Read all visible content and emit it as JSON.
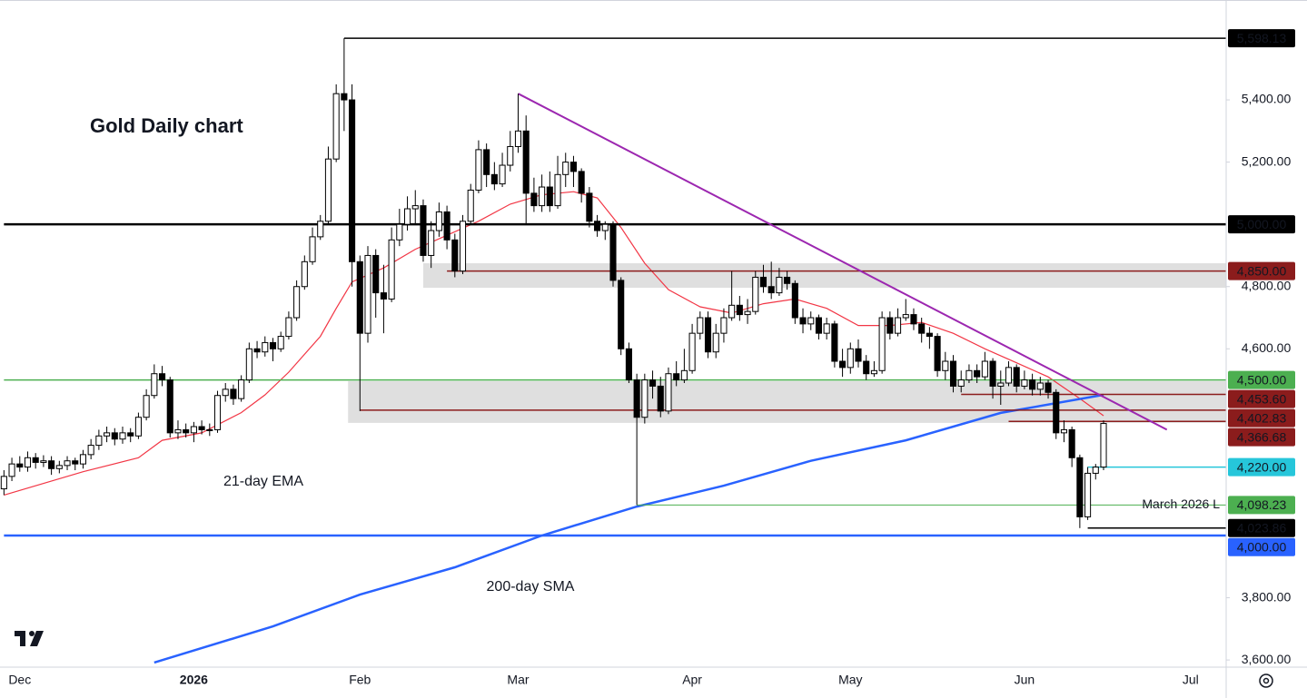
{
  "chart_data": {
    "type": "candlestick",
    "title": "Gold Daily chart",
    "categories": [
      null,
      null,
      "Dec",
      null,
      null,
      null,
      null,
      null,
      null,
      null,
      null,
      null,
      null,
      null,
      null,
      null,
      null,
      null,
      null,
      null,
      null,
      null,
      null,
      null,
      "2026",
      null,
      null,
      null,
      null,
      null,
      null,
      null,
      null,
      null,
      null,
      null,
      null,
      null,
      null,
      null,
      null,
      null,
      null,
      null,
      null,
      "Feb",
      null,
      null,
      null,
      null,
      null,
      null,
      null,
      null,
      null,
      null,
      null,
      null,
      null,
      null,
      null,
      null,
      null,
      null,
      null,
      "Mar",
      null,
      null,
      null,
      null,
      null,
      null,
      null,
      null,
      null,
      null,
      null,
      null,
      null,
      null,
      null,
      null,
      null,
      null,
      null,
      null,
      null,
      "Apr",
      null,
      null,
      null,
      null,
      null,
      null,
      null,
      null,
      null,
      null,
      null,
      null,
      null,
      null,
      null,
      null,
      null,
      null,
      null,
      "May",
      null,
      null,
      null,
      null,
      null,
      null,
      null,
      null,
      null,
      null,
      null,
      null,
      null,
      null,
      null,
      null,
      null,
      null,
      null,
      null,
      null,
      "Jun",
      null,
      null,
      null,
      null,
      null,
      null,
      null,
      null,
      null,
      null,
      null,
      null,
      null,
      null,
      null,
      null,
      null,
      null,
      null,
      null,
      "Jul",
      null,
      null,
      null,
      null
    ],
    "candles": {
      "up_color": "#ffffff",
      "down_color": "#000000",
      "outline": "#000000",
      "open": [
        4150,
        4190,
        4230,
        4220,
        4250,
        4235,
        4240,
        4215,
        4225,
        4240,
        4230,
        4260,
        4290,
        4320,
        4330,
        4310,
        4330,
        4320,
        4380,
        4450,
        4520,
        4500,
        4330,
        4340,
        4330,
        4350,
        4340,
        4340,
        4450,
        4470,
        4440,
        4500,
        4600,
        4590,
        4620,
        4600,
        4640,
        4700,
        4800,
        4880,
        4960,
        5010,
        5210,
        5420,
        5400,
        4880,
        4650,
        4900,
        4780,
        4760,
        4950,
        5000,
        5050,
        5060,
        4900,
        4980,
        5040,
        4950,
        4850,
        5010,
        5110,
        5240,
        5160,
        5130,
        5190,
        5250,
        5300,
        5100,
        5060,
        5120,
        5060,
        5160,
        5200,
        5170,
        5100,
        5010,
        4980,
        5000,
        4820,
        4600,
        4500,
        4380,
        4500,
        4480,
        4400,
        4520,
        4500,
        4530,
        4650,
        4700,
        4590,
        4650,
        4700,
        4740,
        4710,
        4720,
        4830,
        4800,
        4780,
        4830,
        4810,
        4700,
        4680,
        4700,
        4650,
        4680,
        4560,
        4540,
        4600,
        4560,
        4520,
        4530,
        4700,
        4650,
        4700,
        4710,
        4680,
        4650,
        4640,
        4530,
        4560,
        4480,
        4500,
        4530,
        4510,
        4560,
        4480,
        4490,
        4540,
        4480,
        4500,
        4470,
        4490,
        4460,
        4330,
        4340,
        4250,
        4060,
        4200,
        4220,
        null,
        null,
        null,
        null,
        null,
        null,
        null,
        null,
        null,
        null,
        null,
        null,
        null,
        null,
        null
      ],
      "high": [
        4210,
        4250,
        4255,
        4270,
        4265,
        4258,
        4255,
        4240,
        4255,
        4250,
        4275,
        4310,
        4340,
        4350,
        4345,
        4350,
        4345,
        4395,
        4470,
        4550,
        4545,
        4510,
        4370,
        4360,
        4365,
        4370,
        4360,
        4465,
        4490,
        4485,
        4515,
        4620,
        4625,
        4640,
        4635,
        4655,
        4720,
        4820,
        4900,
        4990,
        5030,
        5250,
        5450,
        5598.13,
        5450,
        4900,
        4930,
        4920,
        4870,
        4990,
        5050,
        5090,
        5110,
        5080,
        5010,
        5070,
        5060,
        4970,
        5030,
        5130,
        5270,
        5260,
        5200,
        5230,
        5300,
        5420,
        5350,
        5150,
        5160,
        5170,
        5220,
        5230,
        5220,
        5180,
        5120,
        5030,
        5010,
        5010,
        4830,
        4620,
        4520,
        4520,
        4530,
        4510,
        4540,
        4560,
        4600,
        4680,
        4720,
        4720,
        4680,
        4730,
        4850,
        4770,
        4760,
        4850,
        4870,
        4880,
        4860,
        4850,
        4820,
        4730,
        4720,
        4710,
        4700,
        4690,
        4600,
        4620,
        4630,
        4580,
        4560,
        4720,
        4720,
        4730,
        4760,
        4730,
        4700,
        4670,
        4650,
        4590,
        4580,
        4530,
        4550,
        4550,
        4590,
        4570,
        4530,
        4560,
        4550,
        4530,
        4520,
        4510,
        4500,
        4470,
        4370,
        4350,
        4260,
        4220,
        4230,
        4370,
        null,
        null,
        null,
        null,
        null,
        null,
        null,
        null,
        null,
        null,
        null,
        null,
        null,
        null,
        null
      ],
      "low": [
        4130,
        4175,
        4205,
        4205,
        4215,
        4220,
        4195,
        4200,
        4210,
        4210,
        4215,
        4245,
        4275,
        4300,
        4290,
        4295,
        4300,
        4310,
        4370,
        4440,
        4480,
        4315,
        4310,
        4315,
        4300,
        4325,
        4320,
        4330,
        4430,
        4420,
        4430,
        4490,
        4570,
        4575,
        4560,
        4590,
        4630,
        4690,
        4790,
        4870,
        4950,
        5000,
        5200,
        5300,
        4800,
        4400,
        4620,
        4700,
        4650,
        4750,
        4930,
        4980,
        5000,
        4880,
        4860,
        4960,
        4920,
        4830,
        4840,
        5000,
        5100,
        5120,
        5110,
        5120,
        5170,
        5230,
        5000,
        5040,
        5040,
        5040,
        5050,
        5120,
        5120,
        5070,
        4990,
        4960,
        4950,
        4800,
        4580,
        4490,
        4098.23,
        4360,
        4440,
        4380,
        4390,
        4480,
        4490,
        4520,
        4630,
        4570,
        4570,
        4620,
        4690,
        4690,
        4680,
        4710,
        4780,
        4760,
        4770,
        4790,
        4680,
        4650,
        4660,
        4630,
        4630,
        4540,
        4510,
        4520,
        4540,
        4500,
        4510,
        4520,
        4630,
        4640,
        4690,
        4660,
        4620,
        4600,
        4510,
        4500,
        4460,
        4460,
        4490,
        4490,
        4500,
        4440,
        4420,
        4480,
        4460,
        4470,
        4450,
        4450,
        4440,
        4310,
        4300,
        4220,
        4023.86,
        4050,
        4180,
        4210,
        null,
        null,
        null,
        null,
        null,
        null,
        null,
        null,
        null,
        null,
        null,
        null,
        null,
        null,
        null
      ],
      "close": [
        4190,
        4230,
        4220,
        4250,
        4235,
        4240,
        4215,
        4225,
        4240,
        4230,
        4260,
        4290,
        4320,
        4330,
        4310,
        4330,
        4320,
        4380,
        4450,
        4520,
        4500,
        4330,
        4340,
        4330,
        4350,
        4340,
        4340,
        4450,
        4470,
        4440,
        4500,
        4600,
        4590,
        4620,
        4600,
        4640,
        4700,
        4800,
        4880,
        4960,
        5010,
        5210,
        5420,
        5400,
        4880,
        4650,
        4900,
        4780,
        4760,
        4950,
        5000,
        5050,
        5060,
        4900,
        4980,
        5040,
        4950,
        4850,
        5010,
        5110,
        5240,
        5160,
        5130,
        5190,
        5250,
        5300,
        5100,
        5060,
        5120,
        5060,
        5160,
        5200,
        5170,
        5100,
        5010,
        4980,
        5000,
        4820,
        4600,
        4500,
        4380,
        4500,
        4480,
        4400,
        4520,
        4500,
        4530,
        4650,
        4700,
        4590,
        4650,
        4700,
        4740,
        4710,
        4720,
        4830,
        4800,
        4780,
        4830,
        4810,
        4700,
        4680,
        4700,
        4650,
        4680,
        4560,
        4540,
        4600,
        4560,
        4520,
        4530,
        4700,
        4650,
        4700,
        4710,
        4680,
        4650,
        4640,
        4530,
        4560,
        4480,
        4500,
        4530,
        4510,
        4560,
        4480,
        4490,
        4540,
        4480,
        4500,
        4470,
        4490,
        4460,
        4330,
        4340,
        4250,
        4060,
        4200,
        4220,
        4360,
        null,
        null,
        null,
        null,
        null,
        null,
        null,
        null,
        null,
        null,
        null,
        null,
        null,
        null,
        null
      ]
    },
    "lines": [
      {
        "name": "21-day EMA",
        "color": "#f23645",
        "label_color": "#e60000",
        "x": [
          0,
          10,
          17,
          20,
          25,
          30,
          33,
          36,
          40,
          42,
          44,
          48,
          52,
          56,
          60,
          64,
          68,
          72,
          75,
          78,
          81,
          84,
          88,
          92,
          96,
          100,
          104,
          108,
          112,
          116,
          120,
          124,
          128,
          132,
          136,
          139
        ],
        "values": [
          4130,
          4205,
          4250,
          4306,
          4330,
          4395,
          4452,
          4525,
          4640,
          4730,
          4815,
          4860,
          4920,
          4965,
          5010,
          5065,
          5095,
          5105,
          5085,
          4990,
          4875,
          4790,
          4735,
          4715,
          4745,
          4760,
          4730,
          4675,
          4675,
          4685,
          4650,
          4600,
          4555,
          4510,
          4440,
          4385
        ]
      },
      {
        "name": "200-day SMA",
        "color": "#2962ff",
        "label_color": "#1a1ad0",
        "x": [
          19,
          34,
          45,
          57,
          68,
          80,
          91,
          102,
          114,
          126,
          139
        ],
        "values": [
          3592,
          3708,
          3810,
          3898,
          4000,
          4093,
          4160,
          4240,
          4306,
          4394,
          4452
        ]
      }
    ],
    "trendline": {
      "color": "#9c27b0",
      "x": [
        65,
        147
      ],
      "values": [
        5420,
        4340
      ]
    },
    "zones": [
      {
        "from": 4796,
        "to": 4875,
        "x_start": 53
      },
      {
        "from": 4362,
        "to": 4496,
        "x_start": 43.5
      }
    ],
    "levels": [
      {
        "value": 5598.13,
        "label": "5,598.13",
        "color": "#000000",
        "text_color": "#ffffff",
        "x_start": 43,
        "width": 1.5
      },
      {
        "value": 5000,
        "label": "5,000.00",
        "color": "#000000",
        "text_color": "#ffffff",
        "x_start": 0,
        "width": 2.5
      },
      {
        "value": 4850,
        "label": "4,850.00",
        "color": "#8b1c1c",
        "text_color": "#ffffff",
        "x_start": 56,
        "width": 1.5
      },
      {
        "value": 4500,
        "label": "4,500.00",
        "color": "#4caf50",
        "text_color": "#ffffff",
        "x_start": 0,
        "width": 1.5
      },
      {
        "value": 4453.6,
        "label": "4,453.60",
        "color": "#8b1c1c",
        "text_color": "#ffffff",
        "x_start": 121,
        "width": 1.5
      },
      {
        "value": 4402.83,
        "label": "4,402.83",
        "color": "#8b1c1c",
        "text_color": "#ffffff",
        "x_start": 45,
        "width": 1.5
      },
      {
        "value": 4366.68,
        "label": "4,366.68",
        "color": "#8b1c1c",
        "text_color": "#ffffff",
        "x_start": 127,
        "width": 1.5
      },
      {
        "value": 4220,
        "label": "4,220.00",
        "color": "#26c6da",
        "text_color": "#000000",
        "x_start": 137,
        "width": 1.5
      },
      {
        "value": 4098.23,
        "label": "4,098.23",
        "color": "#4caf50",
        "text_color": "#000000",
        "x_start": 80,
        "width": 1,
        "note": "March 2026 L"
      },
      {
        "value": 4023.86,
        "label": "4,023.86",
        "color": "#000000",
        "text_color": "#ffffff",
        "x_start": 137,
        "width": 1.5
      },
      {
        "value": 4000,
        "label": "4,000.00",
        "color": "#2962ff",
        "text_color": "#ffffff",
        "x_start": 0,
        "width": 2.5
      }
    ],
    "ylim": [
      3577,
      5721
    ],
    "yticks": [
      {
        "value": 5400,
        "label": "5,400.00"
      },
      {
        "value": 5200,
        "label": "5,200.00"
      },
      {
        "value": 4800,
        "label": "4,800.00"
      },
      {
        "value": 4600,
        "label": "4,600.00"
      },
      {
        "value": 3800,
        "label": "3,800.00"
      },
      {
        "value": 3600,
        "label": "3,600.00"
      }
    ],
    "grid": false
  }
}
